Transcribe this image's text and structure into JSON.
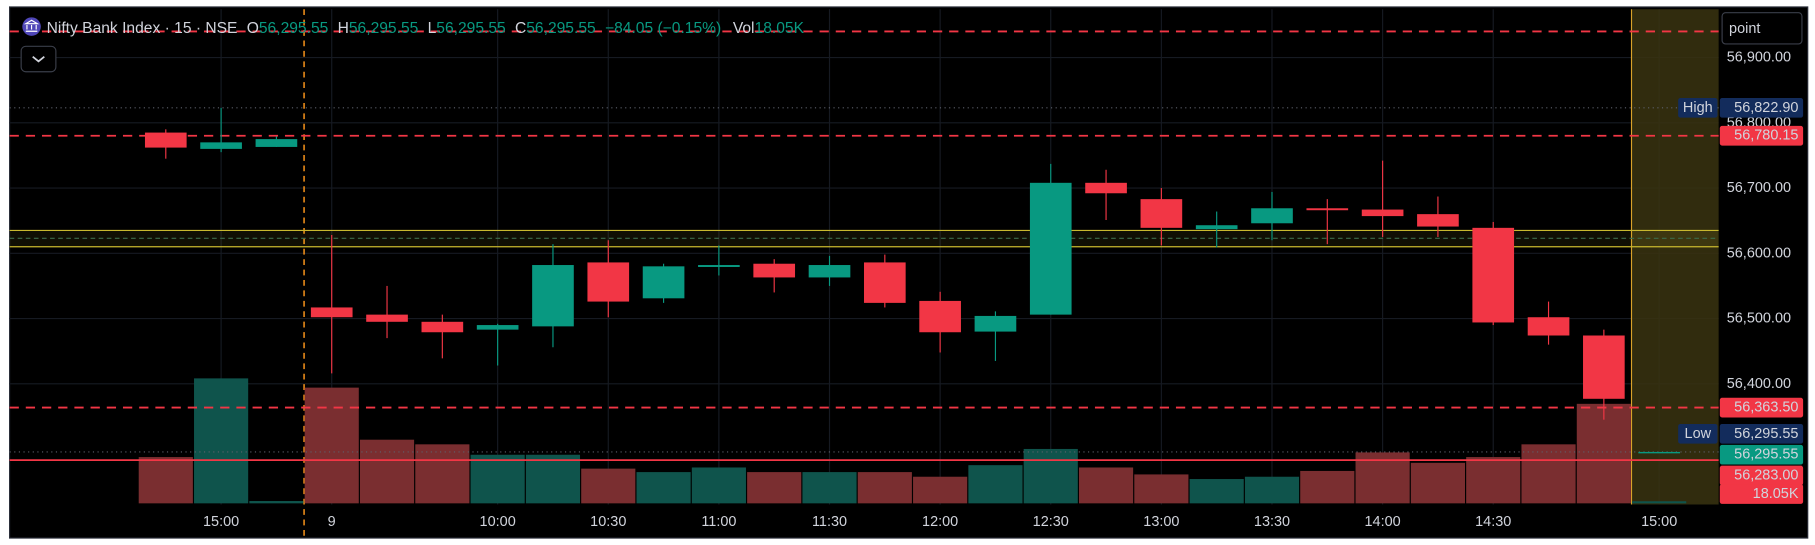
{
  "header": {
    "symbol": "Nifty Bank Index · 15 · NSE",
    "o_label": "O",
    "o": "56,295.55",
    "h_label": "H",
    "h": "56,295.55",
    "l_label": "L",
    "l": "56,295.55",
    "c_label": "C",
    "c": "56,295.55",
    "change": "−84.05 (−0.15%)",
    "vol_label": "Vol",
    "vol": "18.05K"
  },
  "toolbar": {
    "unit": "point"
  },
  "chart_data": {
    "type": "candlestick",
    "categories": [
      null,
      "15:00",
      null,
      "9",
      null,
      null,
      "10:00",
      null,
      "10:30",
      null,
      "11:00",
      null,
      "11:30",
      null,
      "12:00",
      null,
      "12:30",
      null,
      "13:00",
      null,
      "13:30",
      null,
      "14:00",
      null,
      "14:30",
      null,
      null,
      "15:00"
    ],
    "open": [
      56785,
      56760,
      56763,
      56517,
      56506,
      56495,
      56483,
      56488,
      56586,
      56531,
      56579,
      56584,
      56563,
      56586,
      56527,
      56480,
      56506,
      56708,
      56683,
      56637,
      56646,
      56669,
      56667,
      56660,
      56639,
      56502,
      56474,
      56295.55
    ],
    "high": [
      56790,
      56822.9,
      56779,
      56628,
      56550,
      56506,
      56492,
      56614,
      56620,
      56584,
      56612,
      56591,
      56596,
      56598,
      56541,
      56511,
      56737,
      56728,
      56700,
      56664,
      56694,
      56683,
      56742,
      56687,
      56648,
      56526,
      56483,
      56295.55
    ],
    "low": [
      56745,
      56755,
      56763,
      56416,
      56470,
      56439,
      56428,
      56456,
      56502,
      56524,
      56566,
      56540,
      56550,
      56517,
      56448,
      56435,
      56506,
      56651,
      56612,
      56609,
      56620,
      56614,
      56625,
      56625,
      56490,
      56460,
      56345,
      56295.55
    ],
    "close": [
      56762,
      56770,
      56775,
      56502,
      56495,
      56479,
      56490,
      56582,
      56526,
      56580,
      56582,
      56563,
      56582,
      56524,
      56479,
      56504,
      56708,
      56692,
      56639,
      56643,
      56669,
      56666,
      56657,
      56641,
      56494,
      56474,
      56377,
      56295.55
    ],
    "up_color": "#089981",
    "down_color": "#f23645",
    "ylim": [
      56215,
      56974
    ],
    "yticks": [
      {
        "value": 56400,
        "label": "56,400.00"
      },
      {
        "value": 56500,
        "label": "56,500.00"
      },
      {
        "value": 56600,
        "label": "56,600.00"
      },
      {
        "value": 56700,
        "label": "56,700.00"
      },
      {
        "value": 56800,
        "label": "56,800.00"
      },
      {
        "value": 56900,
        "label": "56,900.00"
      }
    ],
    "grid": true,
    "volume": {
      "values": [
        400,
        1080,
        20,
        1000,
        550,
        510,
        420,
        420,
        300,
        270,
        310,
        270,
        270,
        270,
        230,
        330,
        470,
        310,
        250,
        210,
        230,
        280,
        440,
        350,
        400,
        510,
        860,
        18.05
      ],
      "up_color": "#0f544c",
      "down_color": "#7a2e30",
      "badge": {
        "value": 18.05,
        "label": "18.05K",
        "color": "#f23645"
      }
    },
    "y2lim": [
      0,
      2000
    ],
    "zone": {
      "top": 56635,
      "bottom": 56610,
      "mid": 56623,
      "color": "#c9b92e"
    },
    "levels": [
      {
        "value": 56940,
        "color": "#f23645",
        "style": "dashed"
      },
      {
        "value": 56822.9,
        "label": "56,822.90",
        "tag": "High",
        "color": "#132c5c",
        "style": "dotted"
      },
      {
        "value": 56780.15,
        "label": "56,780.15",
        "color": "#f23645",
        "style": "dashed"
      },
      {
        "value": 56363.5,
        "label": "56,363.50",
        "color": "#f23645",
        "style": "dashed"
      },
      {
        "value": 56295.55,
        "label": "56,295.55",
        "tag": "Low",
        "color": "#132c5c",
        "style": "dotted"
      },
      {
        "value": 56295.55,
        "label": "56,295.55",
        "color": "#089981",
        "style": "none"
      },
      {
        "value": 56283,
        "label": "56,283.00",
        "color": "#f23645",
        "style": "solid"
      }
    ]
  }
}
